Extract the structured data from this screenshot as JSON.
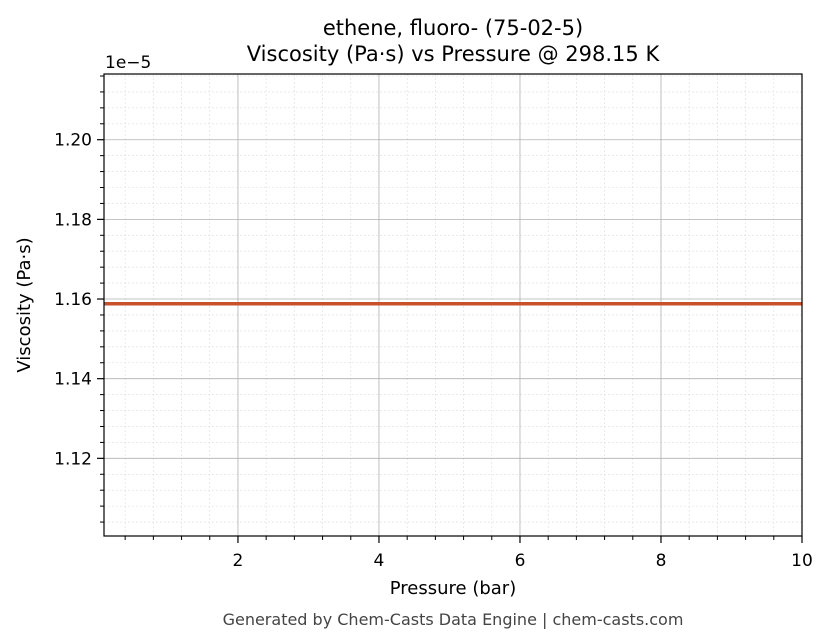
{
  "chart_data": {
    "type": "line",
    "title": "ethene, fluoro- (75-02-5)",
    "subtitle": "Viscosity (Pa·s) vs Pressure @ 298.15 K",
    "xlabel": "Pressure (bar)",
    "ylabel": "Viscosity (Pa·s)",
    "y_offset_label": "1e−5",
    "xlim": [
      0.1,
      10
    ],
    "ylim": [
      1.1005,
      1.2165
    ],
    "x_ticks": [
      2,
      4,
      6,
      8,
      10
    ],
    "x_tick_labels": [
      "2",
      "4",
      "6",
      "8",
      "10"
    ],
    "y_ticks": [
      1.12,
      1.14,
      1.16,
      1.18,
      1.2
    ],
    "y_tick_labels": [
      "1.12",
      "1.14",
      "1.16",
      "1.18",
      "1.20"
    ],
    "grid": true,
    "series": [
      {
        "color": "#c8502a",
        "x": [
          0.1,
          1,
          2,
          3,
          4,
          5,
          6,
          7,
          8,
          9,
          10
        ],
        "y": [
          1.1588,
          1.1588,
          1.1588,
          1.1588,
          1.1588,
          1.1588,
          1.1588,
          1.1588,
          1.1588,
          1.1588,
          1.1588
        ]
      }
    ]
  },
  "footer": "Generated by Chem-Casts Data Engine | chem-casts.com"
}
